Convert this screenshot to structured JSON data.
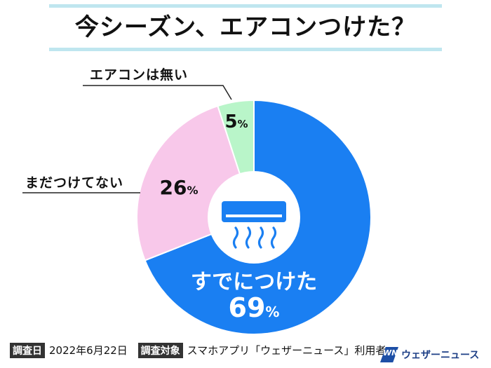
{
  "title": "今シーズン、エアコンつけた？",
  "chart_data": {
    "type": "pie",
    "categories": [
      "すでにつけた",
      "まだつけてない",
      "エアコンは無い"
    ],
    "values": [
      69,
      26,
      5
    ],
    "unit": "%",
    "colors": [
      "#1a7ff2",
      "#f8c8ea",
      "#b9f5c9"
    ],
    "legend": "callouts"
  },
  "icon": "air-conditioner-icon",
  "footer": {
    "survey_date_tag": "調査日",
    "survey_date": "2022年6月22日",
    "target_tag": "調査対象",
    "target": "スマホアプリ「ウェザーニュース」利用者"
  },
  "logo": {
    "mark": "WN",
    "name": "ウェザーニュース"
  }
}
